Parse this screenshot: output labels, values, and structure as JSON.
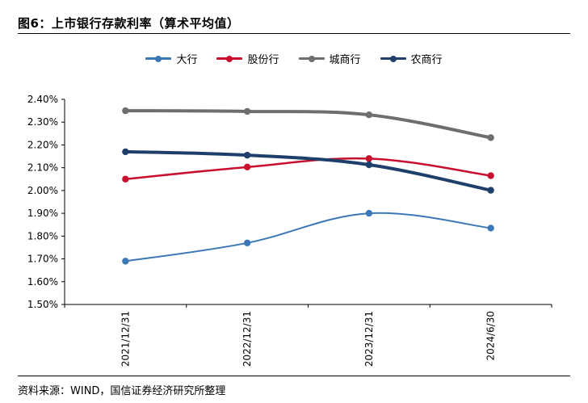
{
  "header": {
    "title": "图6：上市银行存款利率（算术平均值）"
  },
  "footer": {
    "source": "资料来源：WIND，国信证券经济研究所整理"
  },
  "chart_data": {
    "type": "line",
    "categories": [
      "2021/12/31",
      "2022/12/31",
      "2023/12/31",
      "2024/6/30"
    ],
    "series": [
      {
        "name": "大行",
        "color": "#3C78B5",
        "values": [
          1.69,
          1.77,
          1.9,
          1.835
        ]
      },
      {
        "name": "股份行",
        "color": "#C8102E",
        "values": [
          2.05,
          2.103,
          2.14,
          2.065
        ]
      },
      {
        "name": "城商行",
        "color": "#6E6E6E",
        "values": [
          2.35,
          2.347,
          2.332,
          2.232
        ]
      },
      {
        "name": "农商行",
        "color": "#1F3F6B",
        "values": [
          2.17,
          2.155,
          2.113,
          2.001
        ]
      }
    ],
    "ylim": [
      1.5,
      2.4
    ],
    "yticks": [
      "1.50%",
      "1.60%",
      "1.70%",
      "1.80%",
      "1.90%",
      "2.00%",
      "2.10%",
      "2.20%",
      "2.30%",
      "2.40%"
    ],
    "grid": false,
    "legend_position": "top"
  }
}
